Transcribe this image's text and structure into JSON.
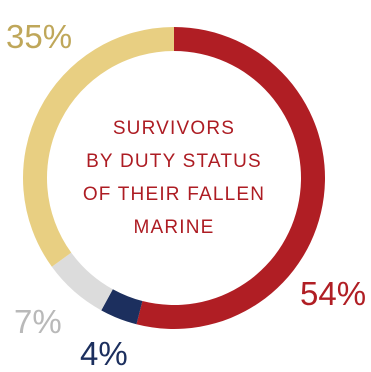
{
  "chart_data": {
    "type": "pie",
    "variant": "donut",
    "title_lines": [
      "SURVIVORS",
      "BY DUTY STATUS",
      "OF THEIR FALLEN",
      "MARINE"
    ],
    "slices": [
      {
        "label": "54%",
        "value": 54,
        "color": "#b01e24"
      },
      {
        "label": "4%",
        "value": 4,
        "color": "#1c2f5e"
      },
      {
        "label": "7%",
        "value": 7,
        "color": "#dcdcdc"
      },
      {
        "label": "35%",
        "value": 35,
        "color": "#e8cf82"
      }
    ],
    "label_colors": [
      "#b01e24",
      "#1c2f5e",
      "#b9b9b9",
      "#bfa75a"
    ],
    "legend": "none"
  }
}
